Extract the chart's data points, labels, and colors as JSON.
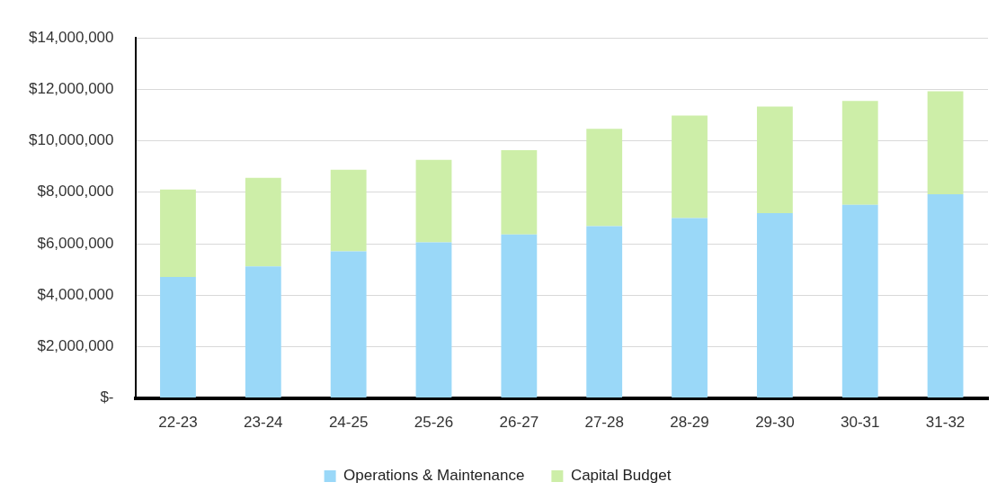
{
  "chart_data": {
    "type": "bar",
    "stacked": true,
    "categories": [
      "22-23",
      "23-24",
      "24-25",
      "25-26",
      "26-27",
      "27-28",
      "28-29",
      "29-30",
      "30-31",
      "31-32"
    ],
    "series": [
      {
        "name": "Operations & Maintenance",
        "color": "#9ad8f8",
        "values": [
          4710000,
          5120000,
          5700000,
          6050000,
          6360000,
          6680000,
          7000000,
          7190000,
          7510000,
          7920000
        ]
      },
      {
        "name": "Capital Budget",
        "color": "#cdeea8",
        "values": [
          3400000,
          3440000,
          3180000,
          3210000,
          3280000,
          3790000,
          3980000,
          4140000,
          4040000,
          4010000
        ]
      }
    ],
    "ylim": [
      0,
      14000000
    ],
    "yticks": [
      {
        "value": 0,
        "label": "$-"
      },
      {
        "value": 2000000,
        "label": "$2,000,000"
      },
      {
        "value": 4000000,
        "label": "$4,000,000"
      },
      {
        "value": 6000000,
        "label": "$6,000,000"
      },
      {
        "value": 8000000,
        "label": "$8,000,000"
      },
      {
        "value": 10000000,
        "label": "$10,000,000"
      },
      {
        "value": 12000000,
        "label": "$12,000,000"
      },
      {
        "value": 14000000,
        "label": "$14,000,000"
      }
    ],
    "grid": "y",
    "legend": "bottom"
  }
}
